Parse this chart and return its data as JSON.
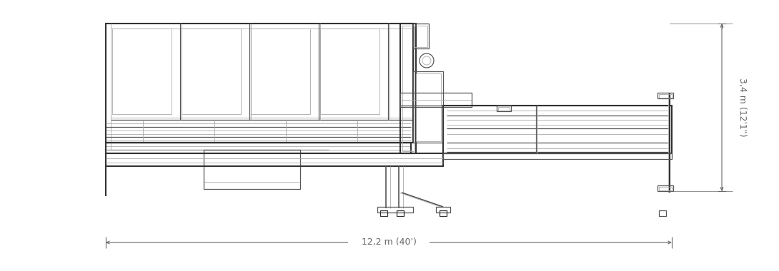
{
  "bg_color": "#ffffff",
  "lc": "#aaaaaa",
  "dc": "#555555",
  "bk": "#333333",
  "dimc": "#666666",
  "width_label": "12,2 m (40')",
  "height_label": "3,4 m (12'1\")",
  "fig_width": 10.9,
  "fig_height": 3.8,
  "dpi": 100
}
